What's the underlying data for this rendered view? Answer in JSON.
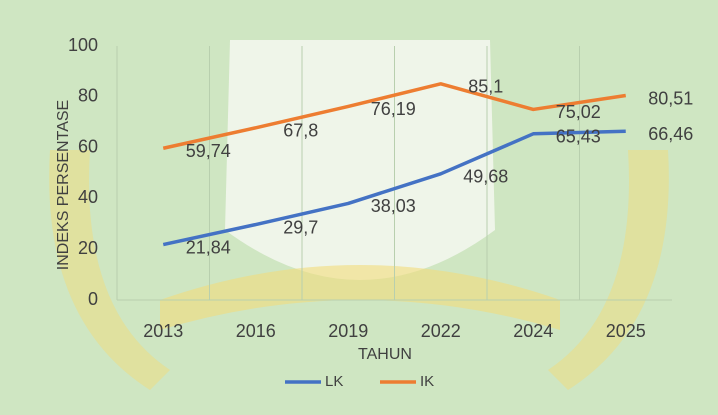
{
  "chart_data": {
    "type": "line",
    "y_label": "INDEKS PERSENTASE",
    "x_label": "TAHUN",
    "categories": [
      "2013",
      "2016",
      "2019",
      "2022",
      "2024",
      "2025"
    ],
    "series": [
      {
        "name": "LK",
        "color": "#4472c4",
        "values": [
          21.84,
          29.7,
          38.03,
          49.68,
          65.43,
          66.46
        ],
        "value_labels": [
          "21,84",
          "29,7",
          "38,03",
          "49,68",
          "65,43",
          "66,46"
        ]
      },
      {
        "name": "IK",
        "color": "#ed7d31",
        "values": [
          59.74,
          67.8,
          76.19,
          85.1,
          75.02,
          80.51
        ],
        "value_labels": [
          "59,74",
          "67,8",
          "76,19",
          "85,1",
          "75,02",
          "80,51"
        ]
      }
    ],
    "ylim": [
      0,
      100
    ],
    "yticks": [
      0,
      20,
      40,
      60,
      80,
      100
    ],
    "legend": "bottom"
  }
}
